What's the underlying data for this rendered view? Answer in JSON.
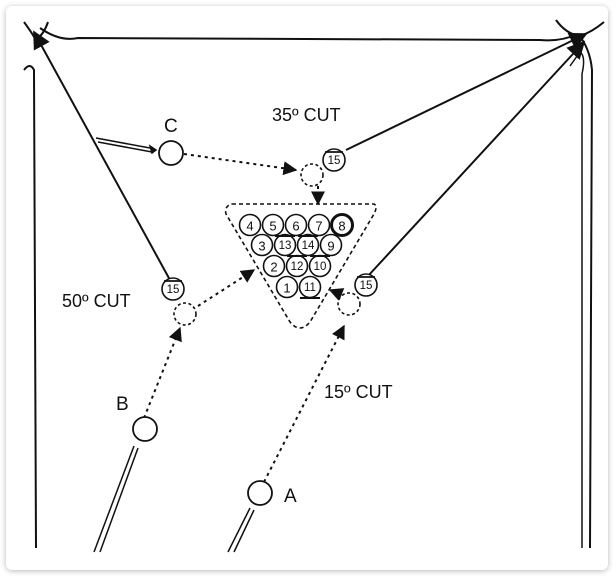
{
  "diagram": {
    "cut_labels": {
      "top": "35º CUT",
      "left": "50º CUT",
      "right": "15º CUT"
    },
    "cue_ball_labels": {
      "a": "A",
      "b": "B",
      "c": "C"
    },
    "object_ball_number": "15",
    "rack": {
      "row1": [
        "4",
        "5",
        "6",
        "7",
        "8"
      ],
      "row2": [
        "3",
        "13",
        "14",
        "9"
      ],
      "row3": [
        "2",
        "12",
        "10"
      ],
      "row4": [
        "1",
        "11"
      ]
    }
  }
}
